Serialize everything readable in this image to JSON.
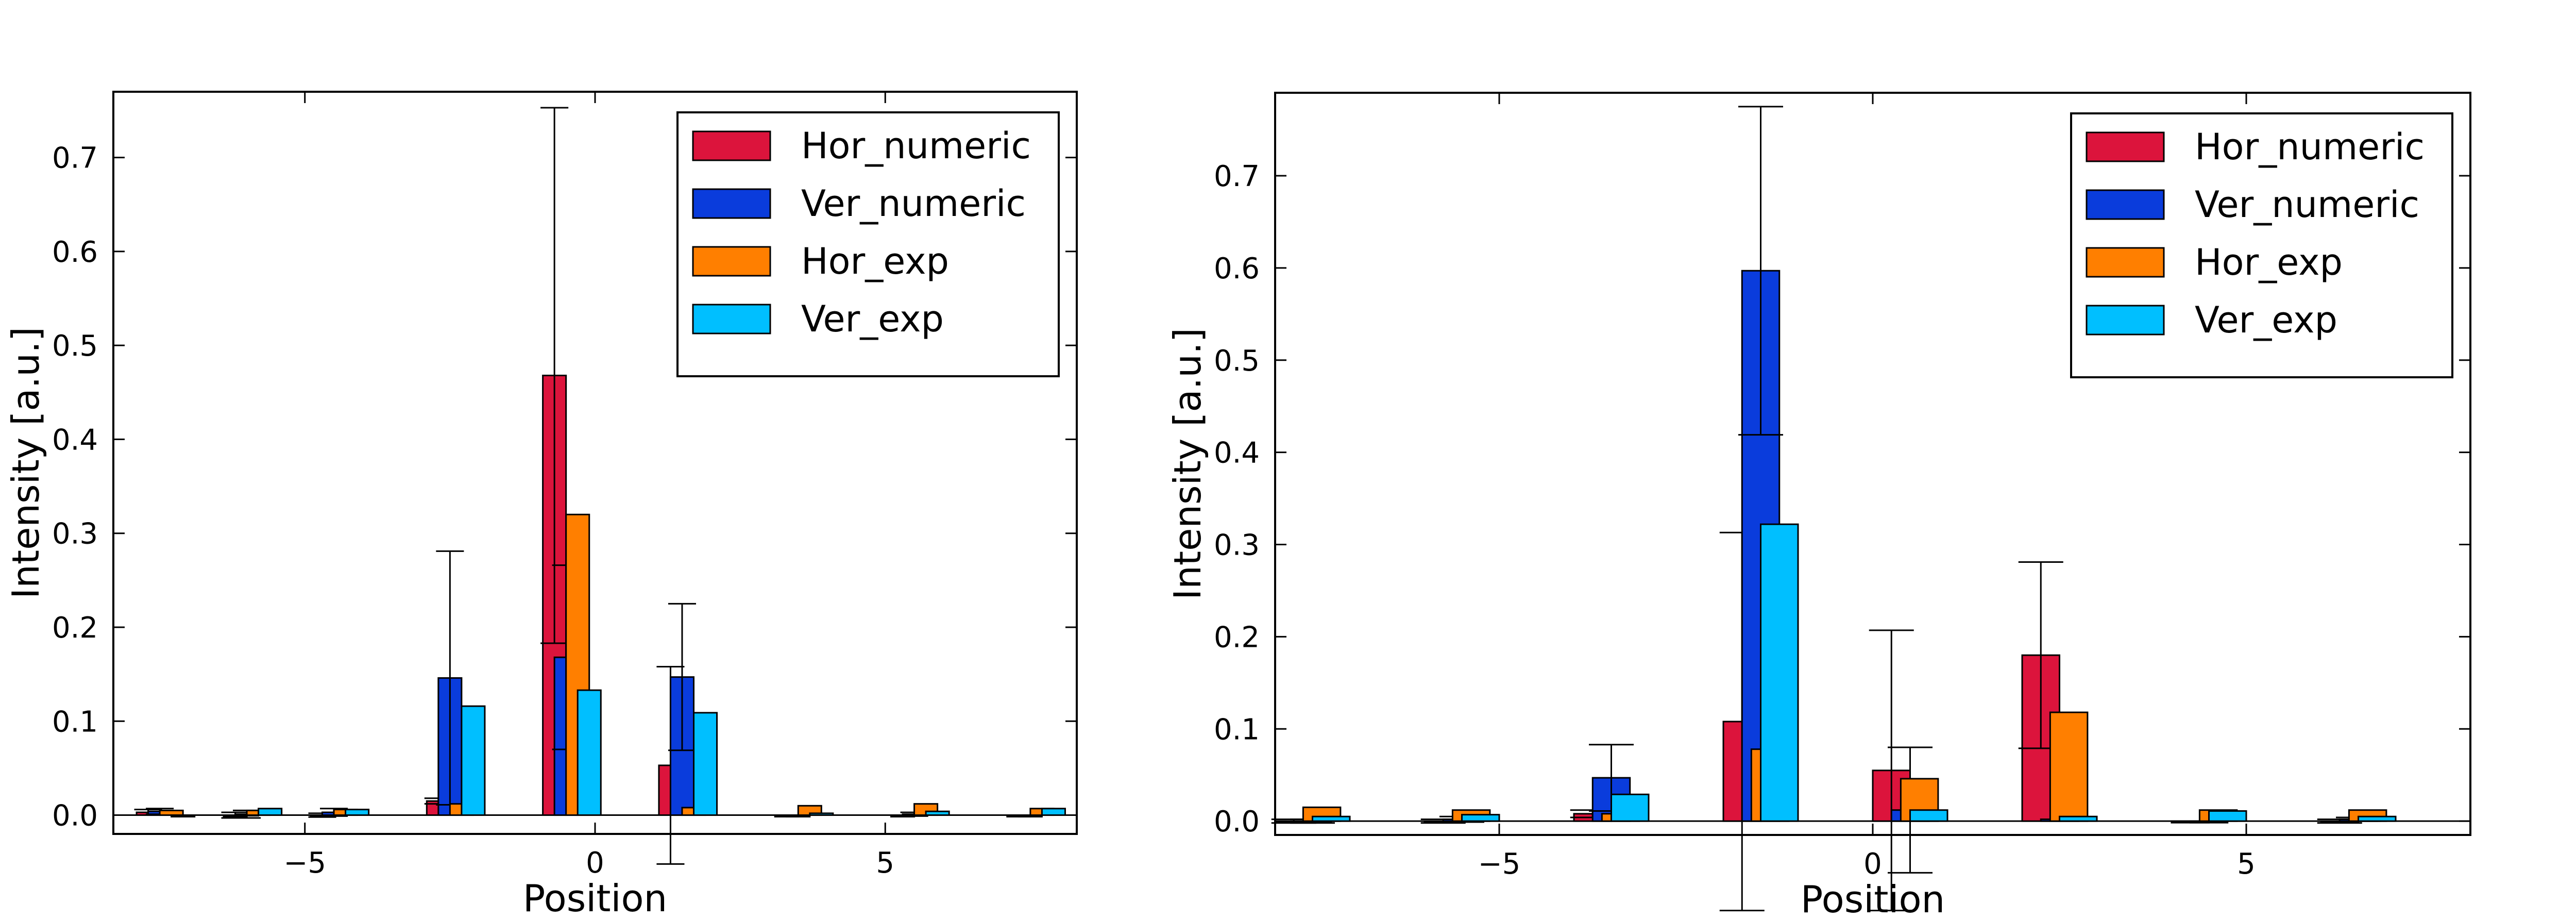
{
  "colors": {
    "Hor_numeric": "#DC143C",
    "Ver_numeric": "#0A3CDC",
    "Hor_exp": "#FF7F00",
    "Ver_exp": "#00BFFF"
  },
  "chart_data": [
    {
      "type": "bar",
      "xlabel": "Position",
      "ylabel": "Intensity [a.u.]",
      "xlim": [
        -8.3,
        8.3
      ],
      "ylim": [
        -0.02,
        0.77
      ],
      "xticks": [
        -5,
        0,
        5
      ],
      "xtick_labels": [
        "−5",
        "0",
        "5"
      ],
      "yticks": [
        0.0,
        0.1,
        0.2,
        0.3,
        0.4,
        0.5,
        0.6,
        0.7
      ],
      "ytick_labels": [
        "0.0",
        "0.1",
        "0.2",
        "0.3",
        "0.4",
        "0.5",
        "0.6",
        "0.7"
      ],
      "legend_position": "top-right",
      "bar_width": 0.4,
      "positions": [
        -7.5,
        -6.0,
        -4.5,
        -2.5,
        -0.5,
        1.5,
        3.5,
        5.5,
        7.5
      ],
      "series": [
        {
          "name": "Hor_numeric",
          "values": [
            0.003,
            0.0,
            0.0,
            0.015,
            0.468,
            0.053,
            0.0,
            0.0,
            0.0
          ],
          "errors": [
            0.003,
            0.003,
            0.002,
            0.003,
            0.285,
            0.105,
            0.0,
            0.0,
            0.0
          ]
        },
        {
          "name": "Ver_numeric",
          "values": [
            0.004,
            0.001,
            0.003,
            0.146,
            0.168,
            0.147,
            0.0,
            0.001,
            0.0
          ],
          "errors": [
            0.003,
            0.004,
            0.004,
            0.135,
            0.098,
            0.078,
            0.0,
            0.002,
            0.0
          ]
        },
        {
          "name": "Hor_exp",
          "values": [
            0.005,
            0.005,
            0.006,
            0.012,
            0.32,
            0.008,
            0.01,
            0.012,
            0.007
          ],
          "errors": [
            0.0,
            0.0,
            0.0,
            0.0,
            0.0,
            0.0,
            0.0,
            0.0,
            0.0
          ]
        },
        {
          "name": "Ver_exp",
          "values": [
            0.0,
            0.007,
            0.006,
            0.116,
            0.133,
            0.109,
            0.002,
            0.004,
            0.007
          ],
          "errors": [
            0.0,
            0.0,
            0.0,
            0.0,
            0.0,
            0.0,
            0.0,
            0.0,
            0.0
          ]
        }
      ]
    },
    {
      "type": "bar",
      "xlabel": "Position",
      "ylabel": "Intensity [a.u.]",
      "xlim": [
        -8,
        8
      ],
      "ylim": [
        -0.015,
        0.79
      ],
      "xticks": [
        -5,
        0,
        5
      ],
      "xtick_labels": [
        "−5",
        "0",
        "5"
      ],
      "yticks": [
        0.0,
        0.1,
        0.2,
        0.3,
        0.4,
        0.5,
        0.6,
        0.7
      ],
      "ytick_labels": [
        "0.0",
        "0.1",
        "0.2",
        "0.3",
        "0.4",
        "0.5",
        "0.6",
        "0.7"
      ],
      "legend_position": "top-right",
      "bar_width": 0.5,
      "positions": [
        -7.5,
        -5.5,
        -3.5,
        -1.5,
        0.5,
        2.5,
        4.5,
        6.5
      ],
      "series": [
        {
          "name": "Hor_numeric",
          "values": [
            0.0,
            0.0,
            0.008,
            0.108,
            0.055,
            0.18,
            0.0,
            0.0
          ],
          "errors": [
            0.002,
            0.002,
            0.004,
            0.205,
            0.152,
            0.101,
            0.0,
            0.002
          ]
        },
        {
          "name": "Ver_numeric",
          "values": [
            0.0,
            0.002,
            0.047,
            0.597,
            0.012,
            0.002,
            0.0,
            0.002
          ],
          "errors": [
            0.002,
            0.003,
            0.036,
            0.178,
            0.068,
            0.0,
            0.0,
            0.002
          ]
        },
        {
          "name": "Hor_exp",
          "values": [
            0.015,
            0.012,
            0.008,
            0.078,
            0.046,
            0.118,
            0.012,
            0.012
          ],
          "errors": [
            0.0,
            0.0,
            0.0,
            0.0,
            0.0,
            0.0,
            0.0,
            0.0
          ]
        },
        {
          "name": "Ver_exp",
          "values": [
            0.005,
            0.007,
            0.029,
            0.322,
            0.012,
            0.005,
            0.011,
            0.005
          ],
          "errors": [
            0.0,
            0.0,
            0.0,
            0.0,
            0.0,
            0.0,
            0.0,
            0.0
          ]
        }
      ]
    }
  ]
}
